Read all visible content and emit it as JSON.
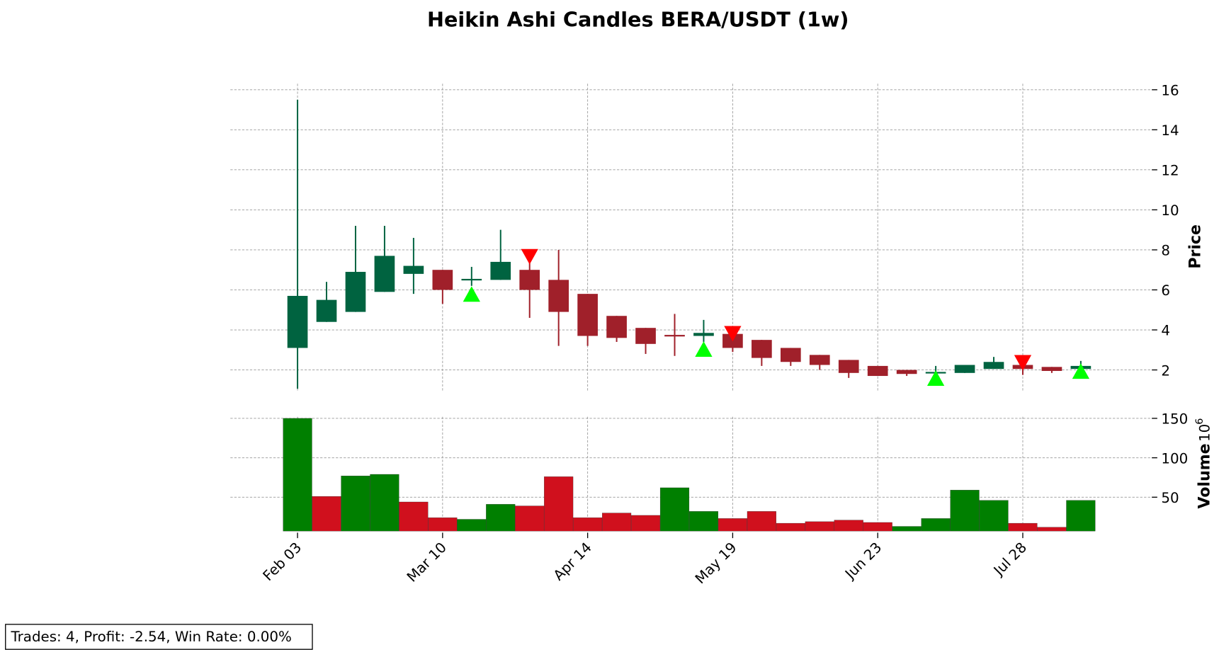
{
  "chart_data": {
    "type": "candlestick",
    "title": "Heikin Ashi Candles BERA/USDT (1w)",
    "categories": [
      "Feb 03",
      null,
      null,
      null,
      null,
      "Mar 10",
      null,
      null,
      null,
      null,
      "Apr 14",
      null,
      null,
      null,
      null,
      "May 19",
      null,
      null,
      null,
      null,
      "Jun 23",
      null,
      null,
      null,
      null,
      "Jul 28",
      null,
      null
    ],
    "candles": {
      "open": [
        3.1,
        4.4,
        4.9,
        5.9,
        6.8,
        7.0,
        6.5,
        6.5,
        7.0,
        6.5,
        5.8,
        4.7,
        4.1,
        3.75,
        3.7,
        3.8,
        3.5,
        3.1,
        2.75,
        2.5,
        2.2,
        2.0,
        1.85,
        1.85,
        2.05,
        2.25,
        2.15,
        2.05
      ],
      "high": [
        15.5,
        6.4,
        9.2,
        9.2,
        8.6,
        7.0,
        7.15,
        9.0,
        7.5,
        8.0,
        5.8,
        4.7,
        4.1,
        4.8,
        4.5,
        3.8,
        3.5,
        3.1,
        2.75,
        2.5,
        2.2,
        2.0,
        2.2,
        2.25,
        2.65,
        2.25,
        2.15,
        2.45
      ],
      "low": [
        1.06,
        4.4,
        4.9,
        5.9,
        5.8,
        5.3,
        6.2,
        6.5,
        4.6,
        3.2,
        3.2,
        3.4,
        2.8,
        2.7,
        3.4,
        2.9,
        2.2,
        2.2,
        2.0,
        1.6,
        1.7,
        1.7,
        1.8,
        1.85,
        2.05,
        1.75,
        1.85,
        2.05
      ],
      "close": [
        5.7,
        5.5,
        6.9,
        7.7,
        7.2,
        6.0,
        6.55,
        7.4,
        6.0,
        4.9,
        3.7,
        3.6,
        3.3,
        3.7,
        3.85,
        3.1,
        2.6,
        2.4,
        2.25,
        1.85,
        1.7,
        1.8,
        1.9,
        2.25,
        2.4,
        2.05,
        1.95,
        2.2
      ],
      "up_color": "#006340",
      "down_color": "#a0202a"
    },
    "buy_signals": {
      "index": [
        6,
        14,
        22,
        27
      ],
      "price": [
        5.75,
        3.0,
        1.55,
        1.9
      ],
      "color": "#00ff00"
    },
    "sell_signals": {
      "index": [
        8,
        15,
        25
      ],
      "price": [
        7.7,
        3.85,
        2.4
      ],
      "color": "#ff0000"
    },
    "ylabel": "Price",
    "ylim": [
      0.9,
      16.3
    ],
    "yticks": [
      2,
      4,
      6,
      8,
      10,
      12,
      14,
      16
    ],
    "volume": {
      "label": "Volume",
      "scale_base": "10",
      "scale_exponent": "6",
      "values": [
        150,
        51,
        77,
        79,
        44,
        24,
        22,
        41,
        39,
        76,
        24,
        30,
        27,
        62,
        32,
        23,
        32,
        17,
        19,
        21,
        18,
        13,
        23,
        59,
        46,
        17,
        12,
        46
      ],
      "colors": [
        "#007f00",
        "#d0101d",
        "#007f00",
        "#007f00",
        "#d0101d",
        "#d0101d",
        "#007f00",
        "#007f00",
        "#d0101d",
        "#d0101d",
        "#d0101d",
        "#d0101d",
        "#d0101d",
        "#007f00",
        "#007f00",
        "#d0101d",
        "#d0101d",
        "#d0101d",
        "#d0101d",
        "#d0101d",
        "#d0101d",
        "#007f00",
        "#007f00",
        "#007f00",
        "#007f00",
        "#d0101d",
        "#d0101d",
        "#007f00"
      ],
      "ylim": [
        7,
        152
      ],
      "yticks": [
        50,
        100,
        150
      ]
    },
    "grid": true,
    "summary": "Trades: 4, Profit: -2.54, Win Rate: 0.00%"
  }
}
